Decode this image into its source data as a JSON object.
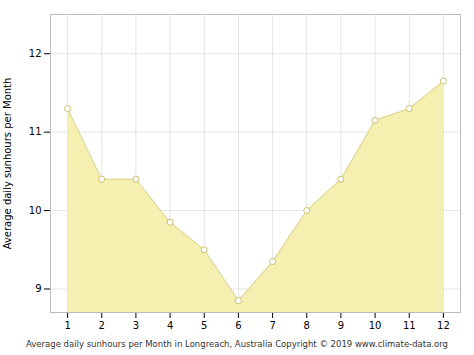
{
  "chart_data": {
    "type": "area",
    "xlabel": "Average daily sunhours per Month in Longreach, Australia Copyright © 2019 www.climate-data.org",
    "ylabel": "Average daily sunhours per Month",
    "x": [
      1,
      2,
      3,
      4,
      5,
      6,
      7,
      8,
      9,
      10,
      11,
      12
    ],
    "values": [
      11.3,
      10.4,
      10.4,
      9.85,
      9.5,
      8.85,
      9.35,
      10.0,
      10.4,
      11.15,
      11.3,
      11.65
    ],
    "color": "#f5f0b0",
    "marker": "circle",
    "xlim": [
      0.5,
      12.5
    ],
    "ylim": [
      8.7,
      12.5
    ],
    "xticks": [
      1,
      2,
      3,
      4,
      5,
      6,
      7,
      8,
      9,
      10,
      11,
      12
    ],
    "yticks": [
      9,
      10,
      11,
      12
    ],
    "grid": true
  }
}
